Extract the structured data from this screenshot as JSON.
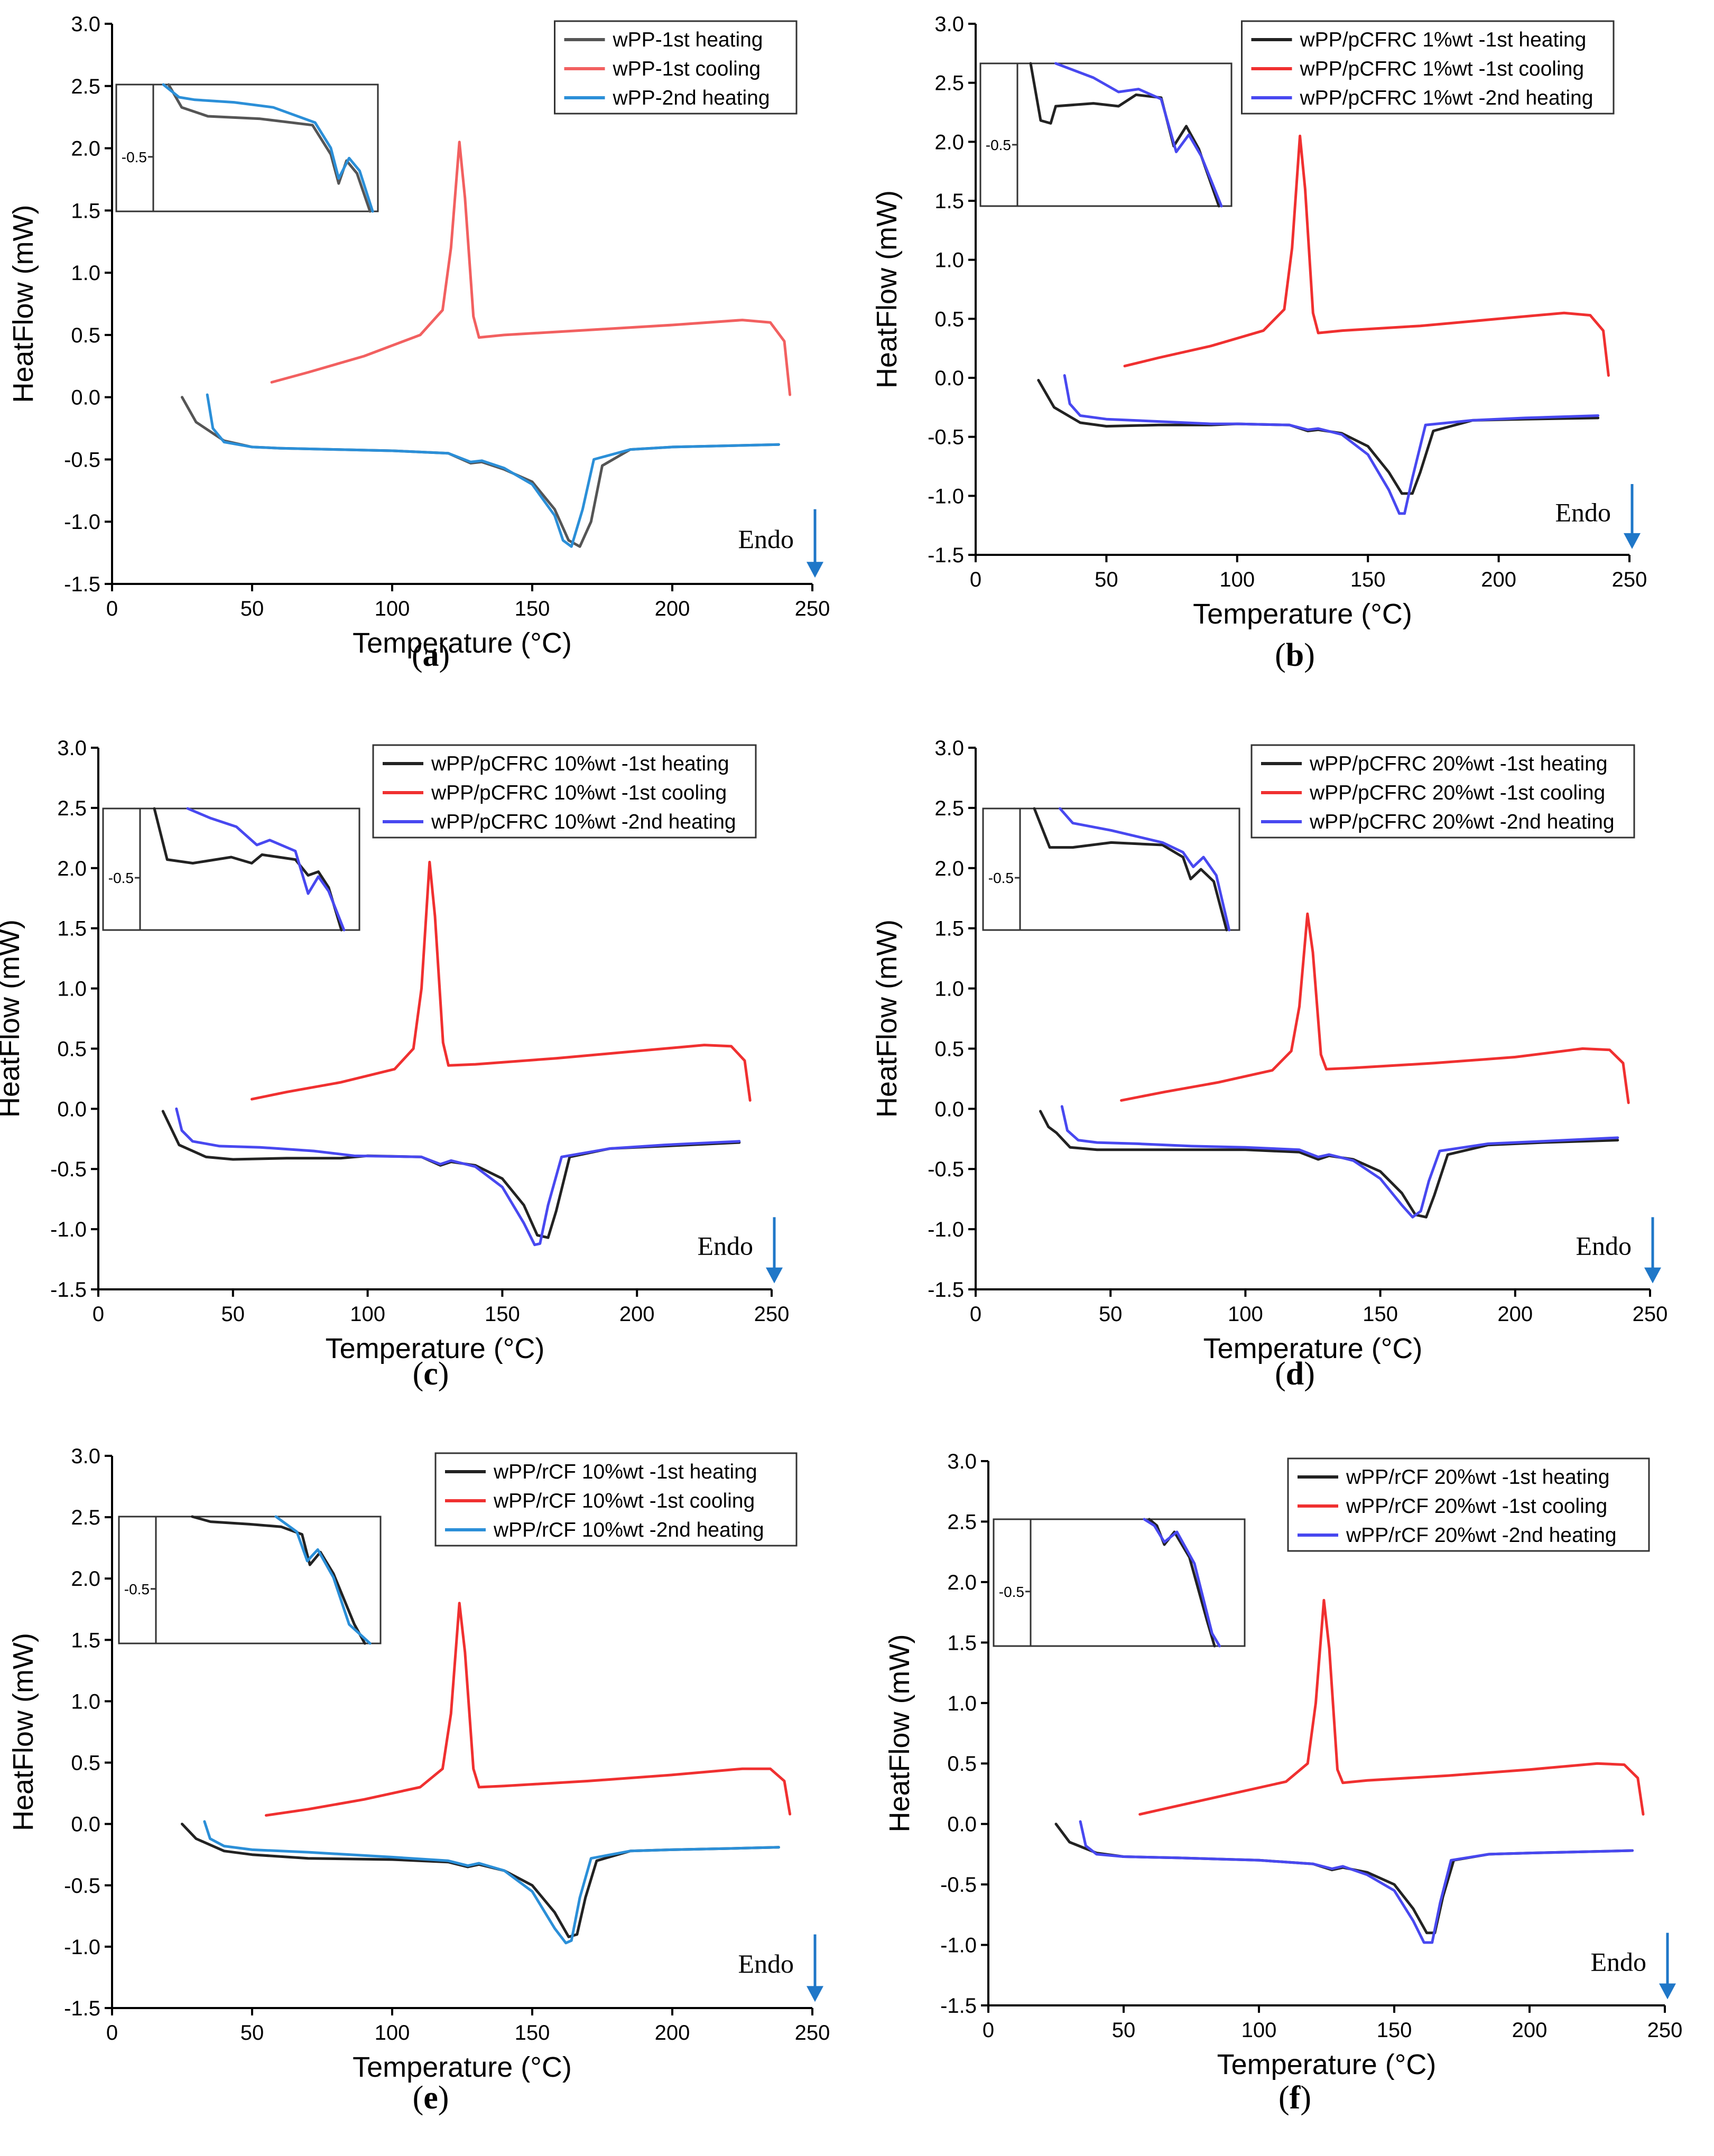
{
  "figure": {
    "y_axis_label": "HeatFlow (mW)",
    "x_axis_label": "Temperature (°C)",
    "endo_label": "Endo",
    "inset_tick_label": "-0.5"
  },
  "chart_data": [
    {
      "type": "line",
      "panel": "a",
      "panel_label": "(a)",
      "xlabel": "Temperature (°C)",
      "ylabel": "HeatFlow (mW)",
      "xlim": [
        0,
        250
      ],
      "ylim": [
        -1.5,
        3.0
      ],
      "xticks": [
        0,
        50,
        100,
        150,
        200,
        250
      ],
      "yticks": [
        -1.5,
        -1.0,
        -0.5,
        0.0,
        0.5,
        1.0,
        1.5,
        2.0,
        2.5,
        3.0
      ],
      "legend_position": "top-right",
      "annotation": "Endo",
      "series": [
        {
          "name": "wPP-1st heating",
          "color": "#555555",
          "x": [
            25,
            30,
            40,
            50,
            60,
            80,
            100,
            120,
            128,
            132,
            140,
            150,
            158,
            163,
            167,
            171,
            175,
            185,
            200,
            220,
            238
          ],
          "y": [
            0.0,
            -0.2,
            -0.35,
            -0.4,
            -0.41,
            -0.42,
            -0.43,
            -0.45,
            -0.53,
            -0.52,
            -0.58,
            -0.68,
            -0.9,
            -1.15,
            -1.2,
            -1.0,
            -0.55,
            -0.42,
            -0.4,
            -0.39,
            -0.38
          ]
        },
        {
          "name": "wPP-1st cooling",
          "color": "#f26060",
          "x": [
            57,
            70,
            90,
            110,
            118,
            121,
            124,
            126,
            129,
            131,
            140,
            170,
            200,
            225,
            235,
            240,
            242
          ],
          "y": [
            0.12,
            0.2,
            0.33,
            0.5,
            0.7,
            1.2,
            2.05,
            1.6,
            0.65,
            0.48,
            0.5,
            0.54,
            0.58,
            0.62,
            0.6,
            0.45,
            0.02
          ]
        },
        {
          "name": "wPP-2nd heating",
          "color": "#2b8fd8",
          "x": [
            34,
            36,
            40,
            50,
            60,
            80,
            100,
            120,
            128,
            132,
            140,
            150,
            158,
            161,
            164,
            168,
            172,
            185,
            200,
            220,
            238
          ],
          "y": [
            0.02,
            -0.25,
            -0.36,
            -0.4,
            -0.41,
            -0.42,
            -0.43,
            -0.45,
            -0.52,
            -0.51,
            -0.57,
            -0.7,
            -0.95,
            -1.15,
            -1.2,
            -0.9,
            -0.5,
            -0.42,
            -0.4,
            -0.39,
            -0.38
          ]
        }
      ],
      "inset": {
        "tick_label": "-0.5"
      }
    },
    {
      "type": "line",
      "panel": "b",
      "panel_label": "(b)",
      "xlabel": "Temperature (°C)",
      "ylabel": "HeatFlow (mW)",
      "xlim": [
        0,
        250
      ],
      "ylim": [
        -1.5,
        3.0
      ],
      "xticks": [
        0,
        50,
        100,
        150,
        200,
        250
      ],
      "yticks": [
        -1.5,
        -1.0,
        -0.5,
        0.0,
        0.5,
        1.0,
        1.5,
        2.0,
        2.5,
        3.0
      ],
      "legend_position": "top-right",
      "annotation": "Endo",
      "series": [
        {
          "name": "wPP/pCFRC 1%wt -1st heating",
          "color": "#222222",
          "x": [
            24,
            30,
            40,
            50,
            70,
            90,
            100,
            120,
            127,
            131,
            140,
            150,
            158,
            163,
            167,
            170,
            175,
            190,
            210,
            238
          ],
          "y": [
            -0.02,
            -0.25,
            -0.38,
            -0.41,
            -0.4,
            -0.4,
            -0.39,
            -0.4,
            -0.45,
            -0.44,
            -0.47,
            -0.58,
            -0.8,
            -0.98,
            -0.98,
            -0.8,
            -0.45,
            -0.36,
            -0.35,
            -0.34
          ]
        },
        {
          "name": "wPP/pCFRC 1%wt -1st cooling",
          "color": "#f03030",
          "x": [
            57,
            70,
            90,
            110,
            118,
            121,
            124,
            126,
            129,
            131,
            140,
            170,
            200,
            225,
            235,
            240,
            242
          ],
          "y": [
            0.1,
            0.17,
            0.27,
            0.4,
            0.58,
            1.1,
            2.05,
            1.6,
            0.55,
            0.38,
            0.4,
            0.44,
            0.5,
            0.55,
            0.53,
            0.4,
            0.02
          ]
        },
        {
          "name": "wPP/pCFRC 1%wt -2nd heating",
          "color": "#4848f0",
          "x": [
            34,
            36,
            40,
            50,
            70,
            90,
            100,
            120,
            127,
            131,
            140,
            150,
            158,
            162,
            164,
            167,
            172,
            190,
            210,
            238
          ],
          "y": [
            0.02,
            -0.22,
            -0.32,
            -0.35,
            -0.37,
            -0.39,
            -0.39,
            -0.4,
            -0.44,
            -0.43,
            -0.48,
            -0.65,
            -0.95,
            -1.15,
            -1.15,
            -0.85,
            -0.4,
            -0.36,
            -0.34,
            -0.32
          ]
        }
      ],
      "inset": {
        "tick_label": "-0.5"
      }
    },
    {
      "type": "line",
      "panel": "c",
      "panel_label": "(c)",
      "xlabel": "Temperature (°C)",
      "ylabel": "HeatFlow (mW)",
      "xlim": [
        0,
        250
      ],
      "ylim": [
        -1.5,
        3.0
      ],
      "xticks": [
        0,
        50,
        100,
        150,
        200,
        250
      ],
      "yticks": [
        -1.5,
        -1.0,
        -0.5,
        0.0,
        0.5,
        1.0,
        1.5,
        2.0,
        2.5,
        3.0
      ],
      "legend_position": "top-right",
      "annotation": "Endo",
      "series": [
        {
          "name": "wPP/pCFRC 10%wt -1st heating",
          "color": "#222222",
          "x": [
            24,
            30,
            40,
            50,
            70,
            90,
            100,
            120,
            127,
            131,
            140,
            150,
            158,
            163,
            167,
            170,
            175,
            190,
            210,
            238
          ],
          "y": [
            -0.02,
            -0.3,
            -0.4,
            -0.42,
            -0.41,
            -0.41,
            -0.39,
            -0.4,
            -0.47,
            -0.44,
            -0.47,
            -0.58,
            -0.8,
            -1.05,
            -1.07,
            -0.85,
            -0.4,
            -0.33,
            -0.31,
            -0.28
          ]
        },
        {
          "name": "wPP/pCFRC 10%wt -1st cooling",
          "color": "#f03030",
          "x": [
            57,
            70,
            90,
            110,
            117,
            120,
            123,
            125,
            128,
            130,
            140,
            170,
            200,
            225,
            235,
            240,
            242
          ],
          "y": [
            0.08,
            0.14,
            0.22,
            0.33,
            0.5,
            1.0,
            2.05,
            1.6,
            0.55,
            0.36,
            0.37,
            0.42,
            0.48,
            0.53,
            0.52,
            0.4,
            0.07
          ]
        },
        {
          "name": "wPP/pCFRC 10%wt -2nd heating",
          "color": "#4848f0",
          "x": [
            29,
            31,
            35,
            45,
            60,
            80,
            95,
            120,
            127,
            131,
            140,
            150,
            158,
            162,
            164,
            167,
            172,
            190,
            210,
            238
          ],
          "y": [
            0.0,
            -0.18,
            -0.27,
            -0.31,
            -0.32,
            -0.35,
            -0.39,
            -0.4,
            -0.46,
            -0.43,
            -0.48,
            -0.65,
            -0.95,
            -1.13,
            -1.12,
            -0.8,
            -0.4,
            -0.33,
            -0.3,
            -0.27
          ]
        }
      ],
      "inset": {
        "tick_label": "-0.5"
      }
    },
    {
      "type": "line",
      "panel": "d",
      "panel_label": "(d)",
      "xlabel": "Temperature (°C)",
      "ylabel": "HeatFlow (mW)",
      "xlim": [
        0,
        250
      ],
      "ylim": [
        -1.5,
        3.0
      ],
      "xticks": [
        0,
        50,
        100,
        150,
        200,
        250
      ],
      "yticks": [
        -1.5,
        -1.0,
        -0.5,
        0.0,
        0.5,
        1.0,
        1.5,
        2.0,
        2.5,
        3.0
      ],
      "legend_position": "top-right",
      "annotation": "Endo",
      "series": [
        {
          "name": "wPP/pCFRC 20%wt -1st heating",
          "color": "#222222",
          "x": [
            24,
            27,
            30,
            35,
            45,
            60,
            80,
            100,
            120,
            127,
            131,
            140,
            150,
            158,
            163,
            167,
            170,
            175,
            190,
            210,
            238
          ],
          "y": [
            -0.02,
            -0.15,
            -0.2,
            -0.32,
            -0.34,
            -0.34,
            -0.34,
            -0.34,
            -0.36,
            -0.42,
            -0.39,
            -0.42,
            -0.52,
            -0.7,
            -0.88,
            -0.9,
            -0.72,
            -0.38,
            -0.3,
            -0.28,
            -0.26
          ]
        },
        {
          "name": "wPP/pCFRC 20%wt -1st cooling",
          "color": "#f03030",
          "x": [
            54,
            70,
            90,
            110,
            117,
            120,
            123,
            125,
            128,
            130,
            140,
            170,
            200,
            225,
            235,
            240,
            242
          ],
          "y": [
            0.07,
            0.14,
            0.22,
            0.32,
            0.48,
            0.85,
            1.62,
            1.3,
            0.45,
            0.33,
            0.34,
            0.38,
            0.43,
            0.5,
            0.49,
            0.38,
            0.05
          ]
        },
        {
          "name": "wPP/pCFRC 20%wt -2nd heating",
          "color": "#4848f0",
          "x": [
            32,
            34,
            38,
            45,
            60,
            80,
            100,
            120,
            127,
            131,
            140,
            150,
            158,
            162,
            165,
            168,
            172,
            190,
            210,
            238
          ],
          "y": [
            0.02,
            -0.18,
            -0.26,
            -0.28,
            -0.29,
            -0.31,
            -0.32,
            -0.34,
            -0.4,
            -0.38,
            -0.43,
            -0.58,
            -0.8,
            -0.9,
            -0.85,
            -0.6,
            -0.35,
            -0.29,
            -0.27,
            -0.24
          ]
        }
      ],
      "inset": {
        "tick_label": "-0.5"
      }
    },
    {
      "type": "line",
      "panel": "e",
      "panel_label": "(e)",
      "xlabel": "Temperature (°C)",
      "ylabel": "HeatFlow (mW)",
      "xlim": [
        0,
        250
      ],
      "ylim": [
        -1.5,
        3.0
      ],
      "xticks": [
        0,
        50,
        100,
        150,
        200,
        250
      ],
      "yticks": [
        -1.5,
        -1.0,
        -0.5,
        0.0,
        0.5,
        1.0,
        1.5,
        2.0,
        2.5,
        3.0
      ],
      "legend_position": "top-right",
      "annotation": "Endo",
      "series": [
        {
          "name": "wPP/rCF 10%wt -1st heating",
          "color": "#222222",
          "x": [
            25,
            30,
            40,
            50,
            70,
            100,
            120,
            127,
            131,
            140,
            150,
            158,
            163,
            166,
            169,
            173,
            185,
            200,
            220,
            238
          ],
          "y": [
            0.0,
            -0.12,
            -0.22,
            -0.25,
            -0.28,
            -0.29,
            -0.31,
            -0.35,
            -0.33,
            -0.38,
            -0.5,
            -0.72,
            -0.92,
            -0.9,
            -0.6,
            -0.3,
            -0.22,
            -0.21,
            -0.2,
            -0.19
          ]
        },
        {
          "name": "wPP/rCF 10%wt -1st cooling",
          "color": "#f03030",
          "x": [
            55,
            70,
            90,
            110,
            118,
            121,
            124,
            126,
            129,
            131,
            140,
            170,
            200,
            225,
            235,
            240,
            242
          ],
          "y": [
            0.07,
            0.12,
            0.2,
            0.3,
            0.45,
            0.9,
            1.8,
            1.4,
            0.45,
            0.3,
            0.31,
            0.35,
            0.4,
            0.45,
            0.45,
            0.35,
            0.08
          ]
        },
        {
          "name": "wPP/rCF 10%wt -2nd heating",
          "color": "#2b8fd8",
          "x": [
            33,
            35,
            40,
            50,
            70,
            100,
            120,
            127,
            131,
            140,
            150,
            158,
            162,
            164,
            167,
            171,
            185,
            200,
            220,
            238
          ],
          "y": [
            0.02,
            -0.12,
            -0.18,
            -0.21,
            -0.23,
            -0.27,
            -0.3,
            -0.34,
            -0.32,
            -0.38,
            -0.55,
            -0.85,
            -0.97,
            -0.95,
            -0.6,
            -0.28,
            -0.22,
            -0.21,
            -0.2,
            -0.19
          ]
        }
      ],
      "inset": {
        "tick_label": "-0.5"
      }
    },
    {
      "type": "line",
      "panel": "f",
      "panel_label": "(f)",
      "xlabel": "Temperature (°C)",
      "ylabel": "HeatFlow (mW)",
      "xlim": [
        0,
        250
      ],
      "ylim": [
        -1.5,
        3.0
      ],
      "xticks": [
        0,
        50,
        100,
        150,
        200,
        250
      ],
      "yticks": [
        -1.5,
        -1.0,
        -0.5,
        0.0,
        0.5,
        1.0,
        1.5,
        2.0,
        2.5,
        3.0
      ],
      "legend_position": "top-right",
      "annotation": "Endo",
      "series": [
        {
          "name": "wPP/rCF 20%wt -1st heating",
          "color": "#222222",
          "x": [
            25,
            30,
            40,
            50,
            70,
            100,
            120,
            127,
            131,
            140,
            150,
            157,
            162,
            165,
            168,
            172,
            185,
            200,
            220,
            238
          ],
          "y": [
            0.0,
            -0.15,
            -0.24,
            -0.27,
            -0.28,
            -0.3,
            -0.33,
            -0.38,
            -0.36,
            -0.4,
            -0.5,
            -0.7,
            -0.9,
            -0.9,
            -0.6,
            -0.3,
            -0.25,
            -0.24,
            -0.23,
            -0.22
          ]
        },
        {
          "name": "wPP/rCF 20%wt -1st cooling",
          "color": "#f03030",
          "x": [
            56,
            70,
            90,
            110,
            118,
            121,
            124,
            126,
            129,
            131,
            140,
            170,
            200,
            225,
            235,
            240,
            242
          ],
          "y": [
            0.08,
            0.15,
            0.25,
            0.35,
            0.5,
            1.0,
            1.85,
            1.45,
            0.45,
            0.34,
            0.36,
            0.4,
            0.45,
            0.5,
            0.49,
            0.38,
            0.08
          ]
        },
        {
          "name": "wPP/rCF 20%wt -2nd heating",
          "color": "#4848f0",
          "x": [
            34,
            36,
            40,
            50,
            70,
            100,
            120,
            127,
            131,
            140,
            150,
            157,
            161,
            164,
            167,
            171,
            185,
            200,
            220,
            238
          ],
          "y": [
            0.02,
            -0.18,
            -0.25,
            -0.27,
            -0.28,
            -0.3,
            -0.33,
            -0.37,
            -0.35,
            -0.42,
            -0.55,
            -0.8,
            -0.98,
            -0.98,
            -0.65,
            -0.3,
            -0.25,
            -0.24,
            -0.23,
            -0.22
          ]
        }
      ],
      "inset": {
        "tick_label": "-0.5"
      }
    }
  ]
}
